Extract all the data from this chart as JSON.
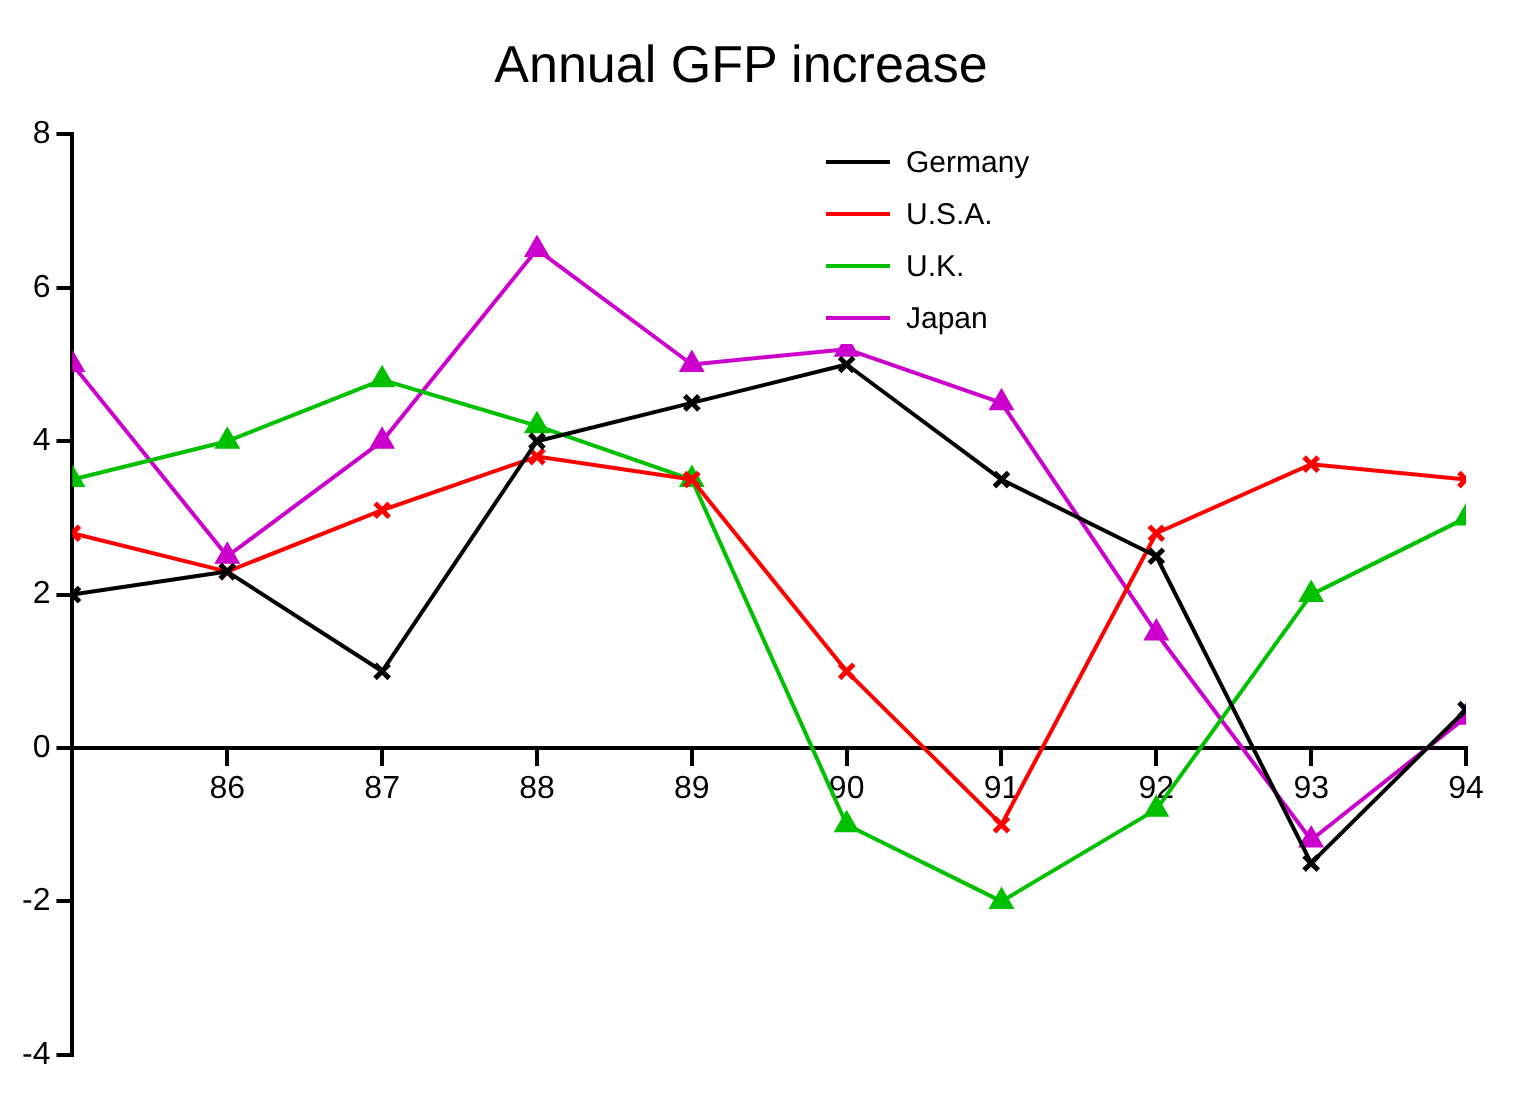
{
  "chart_data": {
    "type": "line",
    "title": "Annual GFP increase",
    "x": [
      85,
      86,
      87,
      88,
      89,
      90,
      91,
      92,
      93,
      94
    ],
    "xlim": [
      85,
      94
    ],
    "xticks": [
      {
        "value": 85,
        "label": null
      },
      86,
      87,
      88,
      89,
      90,
      91,
      92,
      93,
      94
    ],
    "ylim": [
      -4,
      8
    ],
    "yticks": [
      -4,
      -2,
      0,
      2,
      4,
      6,
      8
    ],
    "grid": false,
    "legend": "top",
    "line_style": "solid",
    "series": [
      {
        "name": "Germany",
        "color": "#000000",
        "marker": "cross",
        "values": [
          2,
          2.3,
          1,
          4,
          4.5,
          5,
          3.5,
          2.5,
          -1.5,
          0.5
        ]
      },
      {
        "name": "U.S.A.",
        "color": "#ff0000",
        "marker": "cross",
        "values": [
          2.8,
          2.3,
          3.1,
          3.8,
          3.5,
          1,
          -1,
          2.8,
          3.7,
          3.5
        ]
      },
      {
        "name": "U.K.",
        "color": "#00c000",
        "marker": "triangle",
        "values": [
          3.5,
          4,
          4.8,
          4.2,
          3.5,
          -1,
          -2,
          -0.8,
          2,
          3
        ]
      },
      {
        "name": "Japan",
        "color": "#cc00cc",
        "marker": "triangle",
        "values": [
          5,
          2.5,
          4,
          6.5,
          5,
          5.2,
          4.5,
          1.5,
          -1.2,
          0.4
        ]
      }
    ]
  }
}
